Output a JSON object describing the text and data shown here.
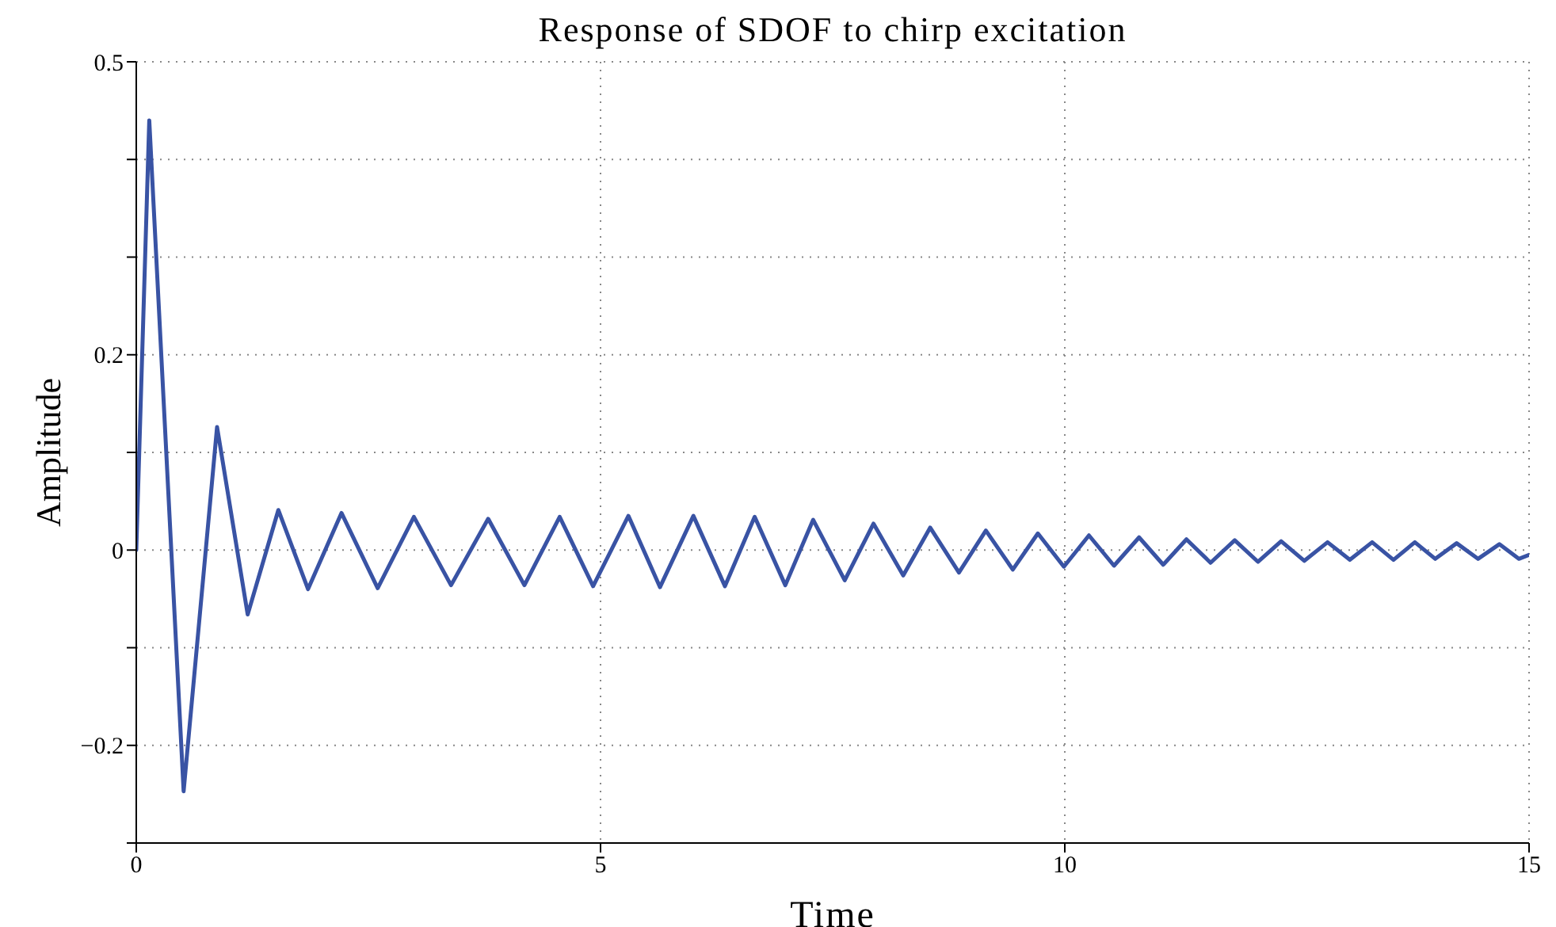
{
  "chart_data": {
    "type": "line",
    "title": "Response of SDOF to chirp excitation",
    "xlabel": "Time",
    "ylabel": "Amplitude",
    "x": [
      0,
      0.14,
      0.51,
      0.87,
      1.2,
      1.53,
      1.85,
      2.21,
      2.6,
      2.99,
      3.39,
      3.79,
      4.18,
      4.56,
      4.92,
      5.3,
      5.64,
      6.0,
      6.34,
      6.66,
      6.99,
      7.29,
      7.63,
      7.94,
      8.26,
      8.55,
      8.86,
      9.15,
      9.44,
      9.71,
      9.99,
      10.26,
      10.53,
      10.8,
      11.06,
      11.31,
      11.57,
      11.83,
      12.08,
      12.33,
      12.58,
      12.83,
      13.07,
      13.31,
      13.54,
      13.77,
      13.99,
      14.22,
      14.45,
      14.68,
      14.89,
      15
    ],
    "series": [
      {
        "color": "#3953a4",
        "values": [
          0,
          0.44,
          -0.247,
          0.126,
          -0.066,
          0.041,
          -0.04,
          0.038,
          -0.039,
          0.034,
          -0.036,
          0.032,
          -0.036,
          0.034,
          -0.037,
          0.035,
          -0.038,
          0.035,
          -0.037,
          0.034,
          -0.036,
          0.031,
          -0.031,
          0.027,
          -0.026,
          0.023,
          -0.023,
          0.02,
          -0.02,
          0.017,
          -0.017,
          0.015,
          -0.016,
          0.013,
          -0.015,
          0.011,
          -0.013,
          0.01,
          -0.012,
          0.009,
          -0.011,
          0.008,
          -0.01,
          0.008,
          -0.01,
          0.008,
          -0.009,
          0.007,
          -0.009,
          0.006,
          -0.009,
          -0.005
        ]
      }
    ],
    "xlim": [
      0,
      15
    ],
    "xticks": [
      0,
      5,
      10,
      15
    ],
    "ylim": [
      -0.3,
      0.5
    ],
    "yticks": [
      {
        "value": -0.3,
        "label": null
      },
      -0.2,
      {
        "value": -0.1,
        "label": null
      },
      0,
      {
        "value": 0.1,
        "label": null
      },
      0.2,
      {
        "value": 0.3,
        "label": null
      },
      {
        "value": 0.4,
        "label": null
      },
      0.5
    ],
    "grid": true,
    "legend": false,
    "marker": "none",
    "line_style": "solid"
  }
}
